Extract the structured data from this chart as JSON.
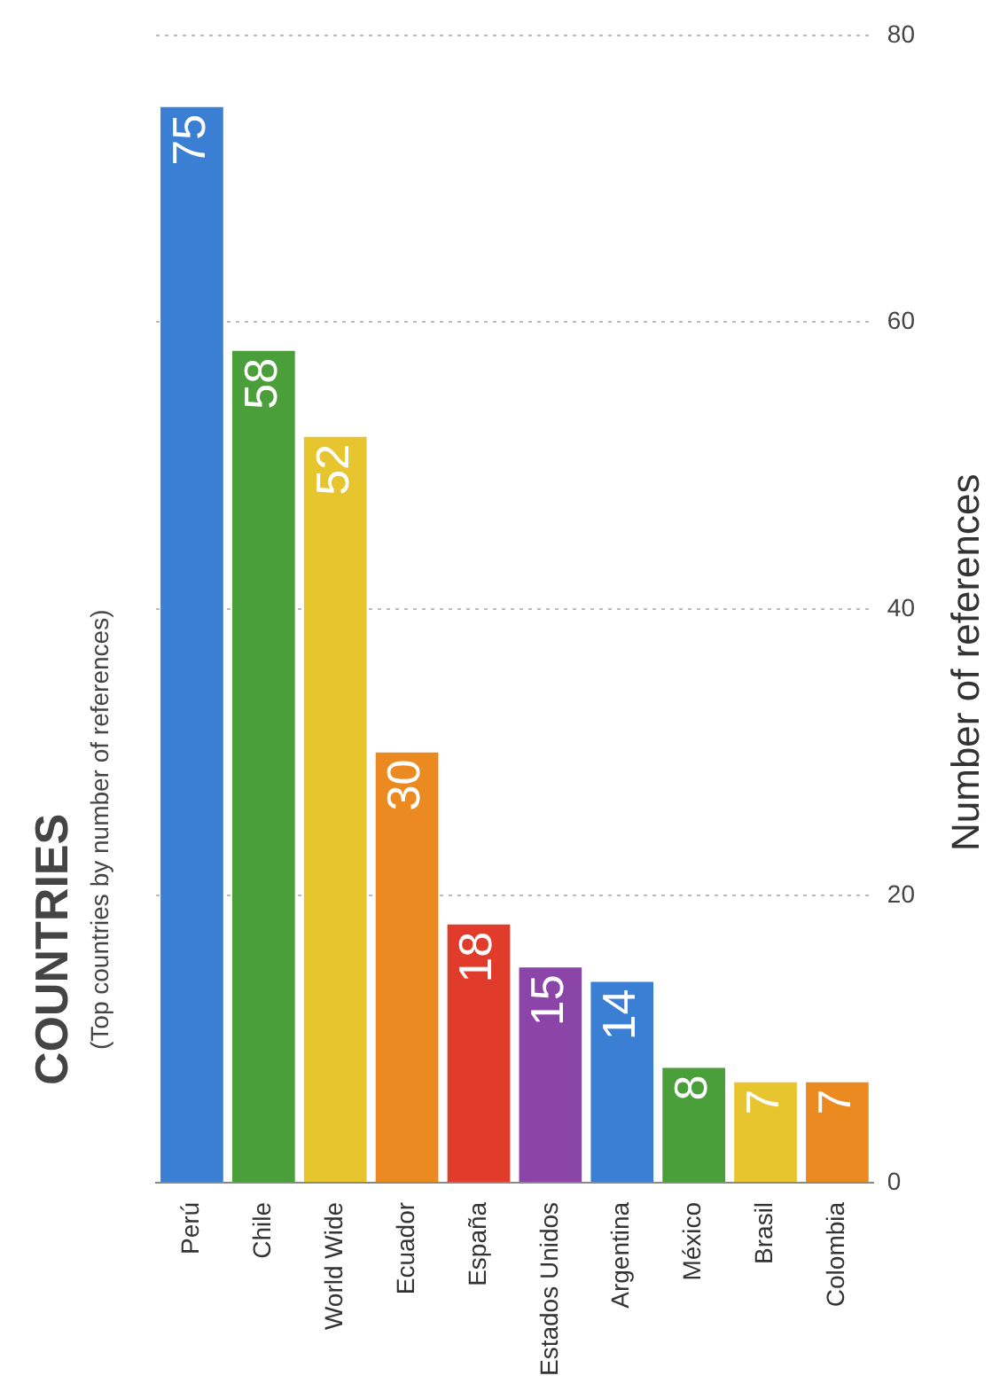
{
  "chart_data": {
    "type": "bar",
    "title": "COUNTRIES",
    "subtitle": "(Top countries by number of references)",
    "ylabel": "Number of references",
    "categories": [
      "Perú",
      "Chile",
      "World Wide",
      "Ecuador",
      "España",
      "Estados Unidos",
      "Argentina",
      "México",
      "Brasil",
      "Colombia"
    ],
    "values": [
      75,
      58,
      52,
      30,
      18,
      15,
      14,
      8,
      7,
      7
    ],
    "colors": [
      "#3b7fd4",
      "#4a9f3b",
      "#e6c52e",
      "#ec8a22",
      "#e03b2b",
      "#8b45a8",
      "#3b7fd4",
      "#4a9f3b",
      "#e6c52e",
      "#ec8a22"
    ],
    "ylim": [
      0,
      80
    ],
    "yticks": [
      0,
      20,
      40,
      60,
      80
    ],
    "grid": "y",
    "data_labels": true,
    "legend": false
  }
}
